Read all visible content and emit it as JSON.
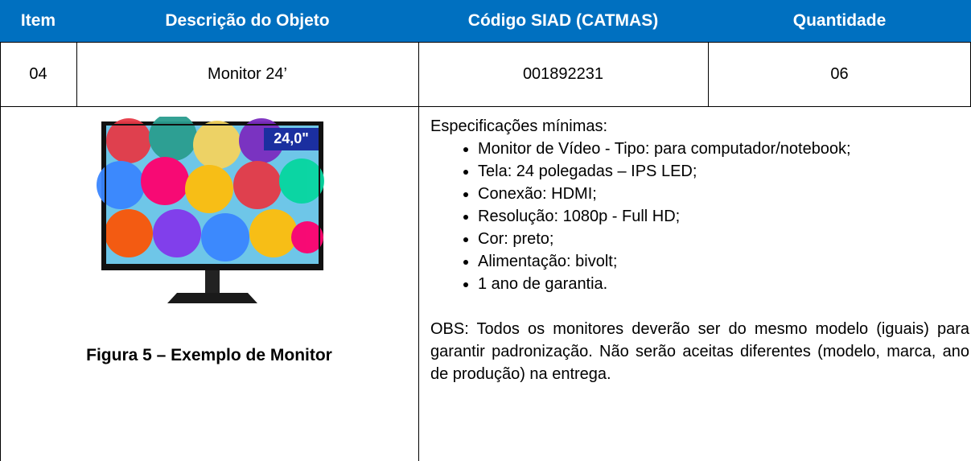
{
  "table": {
    "headers": [
      "Item",
      "Descrição do Objeto",
      "Código SIAD (CATMAS)",
      "Quantidade"
    ],
    "rows": [
      [
        "04",
        "Monitor 24’",
        "001892231",
        "06"
      ]
    ]
  },
  "figure": {
    "badge": "24,0\"",
    "caption": "Figura 5 – Exemplo de Monitor"
  },
  "specs": {
    "heading": "Especificações mínimas:",
    "items": [
      "Monitor de Vídeo - Tipo: para computador/notebook;",
      "Tela: 24 polegadas – IPS LED;",
      "Conexão: HDMI;",
      "Resolução: 1080p - Full HD;",
      "Cor: preto;",
      "Alimentação: bivolt;",
      "1 ano de garantia."
    ],
    "note": "OBS: Todos os monitores deverão ser do mesmo modelo (iguais) para garantir padronização. Não serão aceitas diferentes (modelo, marca, ano de produção) na entrega."
  }
}
